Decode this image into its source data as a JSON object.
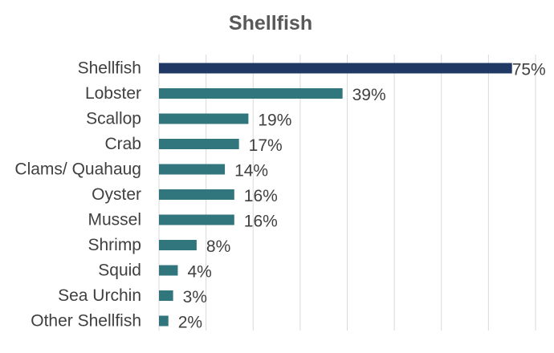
{
  "chart_data": {
    "type": "bar",
    "orientation": "horizontal",
    "title": "Shellfish",
    "xlabel": "",
    "ylabel": "",
    "categories": [
      "Shellfish",
      "Lobster",
      "Scallop",
      "Crab",
      "Clams/ Quahaug",
      "Oyster",
      "Mussel",
      "Shrimp",
      "Squid",
      "Sea Urchin",
      "Other Shellfish"
    ],
    "values": [
      75,
      39,
      19,
      17,
      14,
      16,
      16,
      8,
      4,
      3,
      2
    ],
    "value_labels": [
      "75%",
      "39%",
      "19%",
      "17%",
      "14%",
      "16%",
      "16%",
      "8%",
      "4%",
      "3%",
      "2%"
    ],
    "xlim": [
      0,
      80
    ],
    "grid": true,
    "colors": {
      "highlight": "#1f3864",
      "bar": "#31767c",
      "grid": "#d9d9d9",
      "text": "#404040",
      "title": "#595959"
    }
  }
}
